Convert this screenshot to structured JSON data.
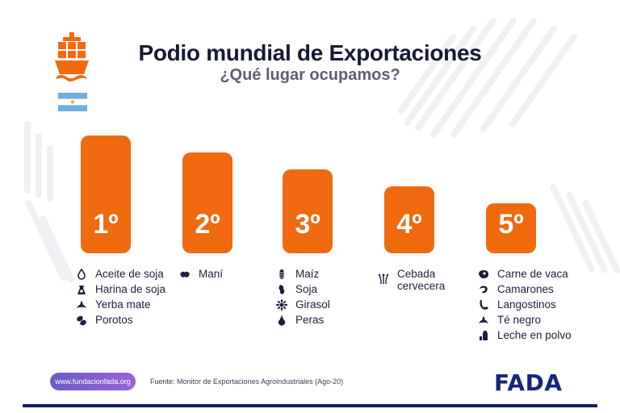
{
  "header": {
    "title": "Podio mundial de Exportaciones",
    "subtitle": "¿Qué lugar ocupamos?"
  },
  "icons": {
    "ship": "cargo-ship-icon",
    "flag": "argentina-flag-icon"
  },
  "colors": {
    "accent": "#f06a0f",
    "title": "#171a34",
    "brand": "#15267a"
  },
  "podium": [
    {
      "rank": "1º",
      "items": [
        {
          "label": "Aceite de soja",
          "icon": "oil-drop-icon"
        },
        {
          "label": "Harina de soja",
          "icon": "flour-bag-icon"
        },
        {
          "label": "Yerba mate",
          "icon": "leaf-icon"
        },
        {
          "label": "Porotos",
          "icon": "bean-icon"
        }
      ]
    },
    {
      "rank": "2º",
      "items": [
        {
          "label": "Maní",
          "icon": "peanut-icon"
        }
      ]
    },
    {
      "rank": "3º",
      "items": [
        {
          "label": "Maíz",
          "icon": "corn-icon"
        },
        {
          "label": "Soja",
          "icon": "soy-icon"
        },
        {
          "label": "Girasol",
          "icon": "sunflower-icon"
        },
        {
          "label": "Peras",
          "icon": "pear-icon"
        }
      ]
    },
    {
      "rank": "4º",
      "items": [
        {
          "label": "Cebada cervecera",
          "icon": "barley-icon"
        }
      ]
    },
    {
      "rank": "5º",
      "items": [
        {
          "label": "Carne de vaca",
          "icon": "meat-icon"
        },
        {
          "label": "Camarones",
          "icon": "shrimp-icon"
        },
        {
          "label": "Langostinos",
          "icon": "prawn-icon"
        },
        {
          "label": "Té negro",
          "icon": "tea-leaf-icon"
        },
        {
          "label": "Leche en polvo",
          "icon": "milk-powder-icon"
        }
      ]
    }
  ],
  "footer": {
    "website": "www.fundacionfada.org",
    "source": "Fuente: Monitor de Exportaciones Agroindustriales (Ago-20)",
    "logo": "FADA"
  }
}
